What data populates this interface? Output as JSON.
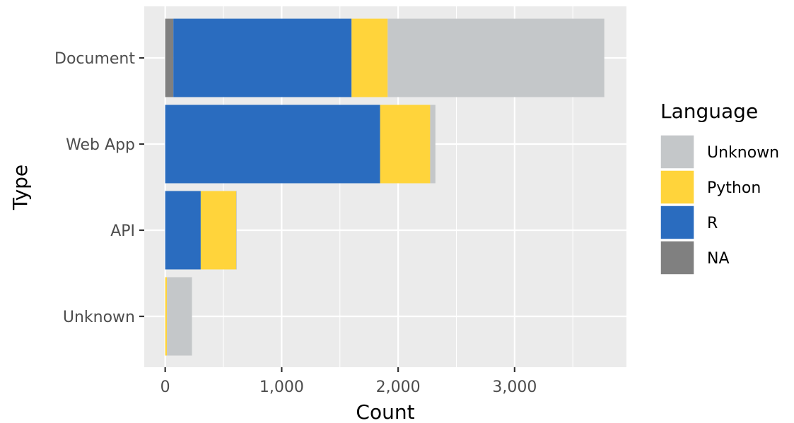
{
  "chart_data": {
    "type": "bar",
    "orientation": "horizontal",
    "stacked": true,
    "xlabel": "Count",
    "ylabel": "Type",
    "xlim": [
      -180,
      3960
    ],
    "x_ticks": [
      0,
      1000,
      2000,
      3000
    ],
    "x_tick_labels": [
      "0",
      "1,000",
      "2,000",
      "3,000"
    ],
    "categories": [
      "Document",
      "Web App",
      "API",
      "Unknown"
    ],
    "series": [
      {
        "name": "NA",
        "color": "#808080",
        "values": [
          70,
          0,
          0,
          0
        ]
      },
      {
        "name": "R",
        "color": "#2a6cbf",
        "values": [
          1530,
          1845,
          305,
          0
        ]
      },
      {
        "name": "Python",
        "color": "#ffd43b",
        "values": [
          310,
          430,
          305,
          15
        ]
      },
      {
        "name": "Unknown",
        "color": "#c4c7c9",
        "values": [
          1860,
          45,
          5,
          215
        ]
      }
    ],
    "legend": {
      "title": "Language",
      "position": "right",
      "order": [
        "Unknown",
        "Python",
        "R",
        "NA"
      ]
    },
    "grid": true,
    "panel_background": "#ebebeb",
    "grid_color": "#ffffff"
  }
}
